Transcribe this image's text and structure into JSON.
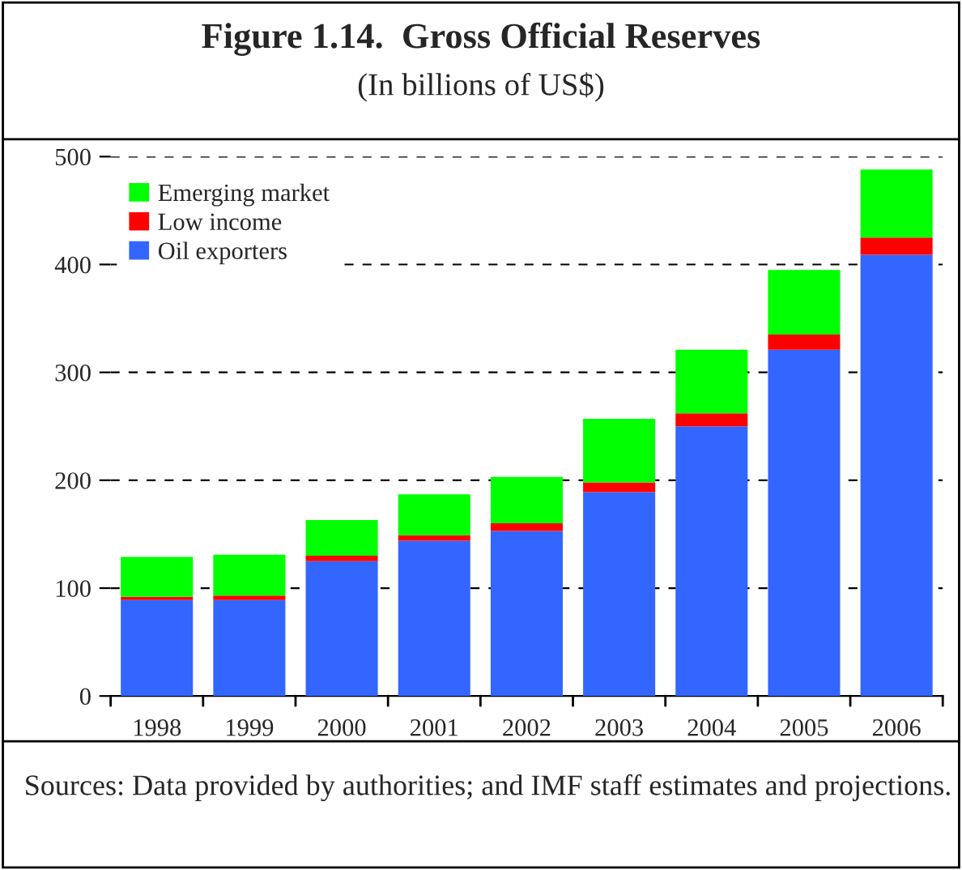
{
  "chart_data": {
    "type": "bar",
    "title": "Figure 1.14.  Gross Official Reserves",
    "subtitle": "(In billions of US$)",
    "categories": [
      "1998",
      "1999",
      "2000",
      "2001",
      "2002",
      "2003",
      "2004",
      "2005",
      "2006"
    ],
    "stacked": true,
    "series": [
      {
        "name": "Oil exporters",
        "color": "#3366ff",
        "values": [
          89,
          89,
          125,
          144,
          153,
          189,
          250,
          321,
          409
        ]
      },
      {
        "name": "Low income",
        "color": "#ff0000",
        "values": [
          3,
          4,
          5,
          5,
          7,
          9,
          12,
          14,
          16
        ]
      },
      {
        "name": "Emerging market",
        "color": "#00ff00",
        "values": [
          37,
          38,
          33,
          38,
          43,
          59,
          59,
          60,
          63
        ]
      }
    ],
    "ylim": [
      0,
      500
    ],
    "yticks": [
      0,
      100,
      200,
      300,
      400,
      500
    ],
    "grid": "y",
    "legend": "top left",
    "annotations": [
      "Sources: Data provided by authorities; and IMF staff estimates and projections."
    ]
  }
}
